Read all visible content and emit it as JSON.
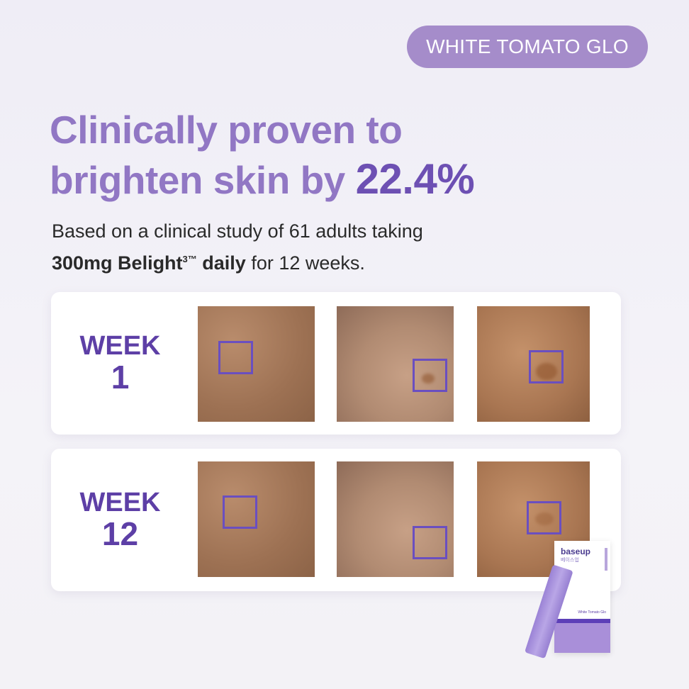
{
  "badge": "WHITE TOMATO GLO",
  "headline": {
    "line1": "Clinically proven to",
    "line2_pre": "brighten skin by ",
    "line2_highlight": "22.4%"
  },
  "subtext": {
    "line1": "Based on a clinical study of 61 adults taking",
    "bold1": "300mg Belight",
    "sup": "3™",
    "bold2": " daily",
    "rest": " for 12 weeks."
  },
  "rows": [
    {
      "week_label": "WEEK",
      "week_num": "1"
    },
    {
      "week_label": "WEEK",
      "week_num": "12"
    }
  ],
  "product": {
    "brand": "baseup",
    "brand_kr": "베이스업",
    "name": "White Tomato Glo"
  },
  "colors": {
    "accent": "#6d50b3",
    "badge": "#a58cca",
    "headline": "#9177c4",
    "week_text": "#5d3fa6"
  }
}
